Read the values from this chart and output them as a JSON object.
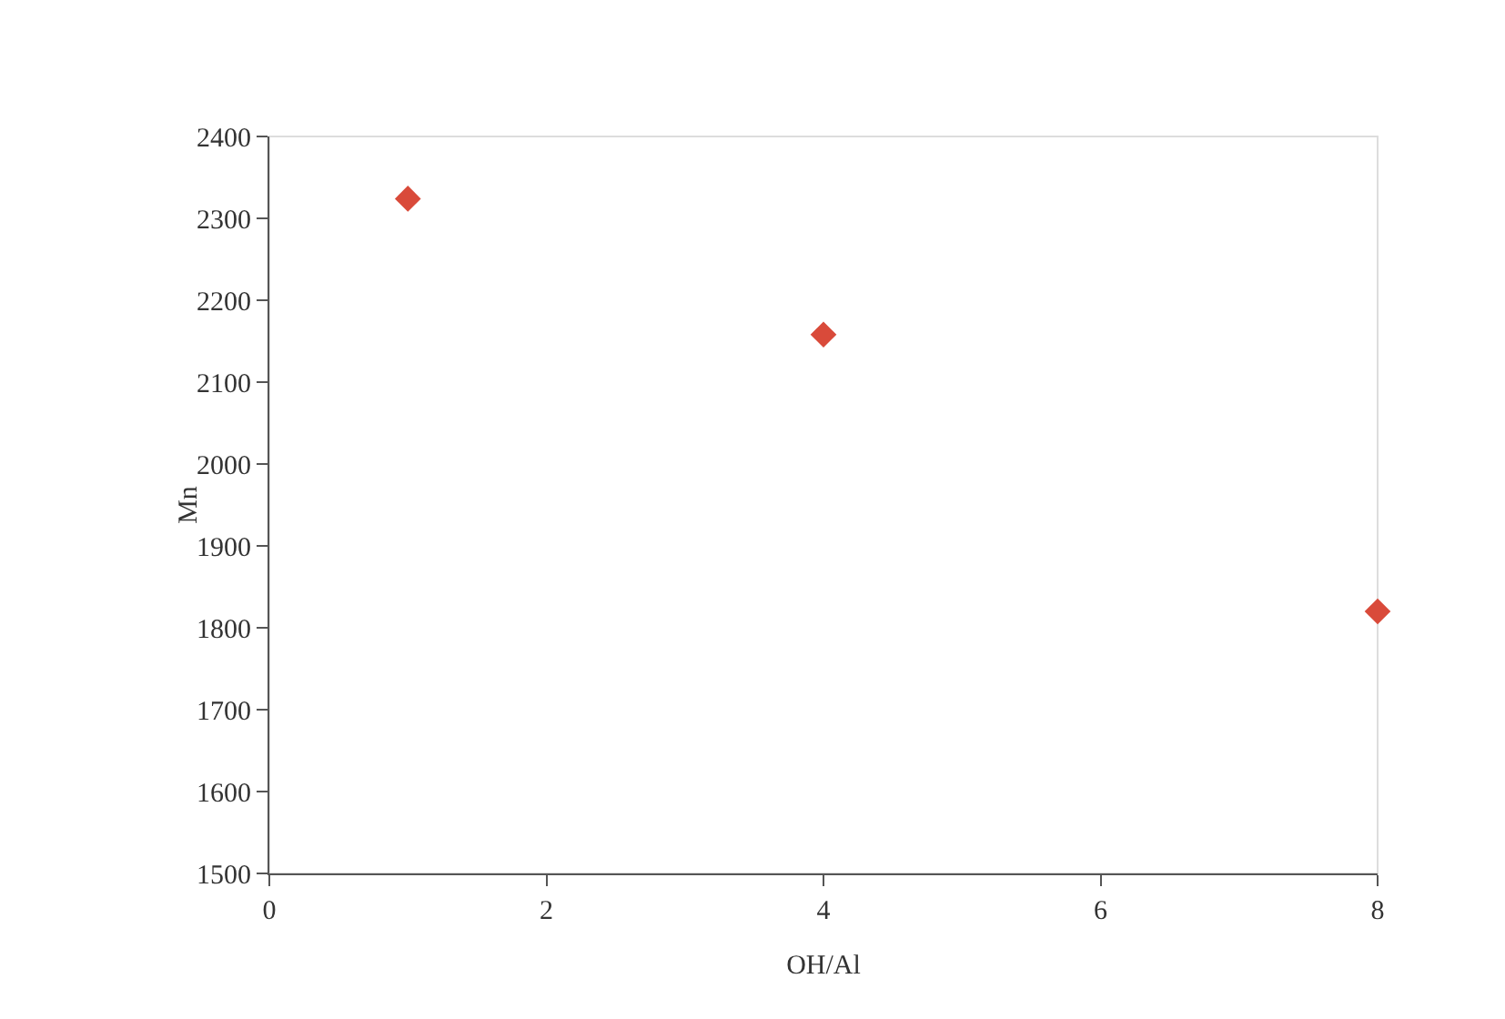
{
  "chart_data": {
    "type": "scatter",
    "xlabel": "OH/Al",
    "ylabel": "Mn",
    "x": [
      1,
      4,
      8
    ],
    "series": [
      {
        "color": "#d94a3a",
        "values": [
          2324,
          2158,
          1820
        ]
      }
    ],
    "xlim": [
      0,
      8
    ],
    "xticks": [
      0,
      2,
      4,
      6,
      8
    ],
    "ylim": [
      1500,
      2400
    ],
    "yticks": [
      1500,
      1600,
      1700,
      1800,
      1900,
      2000,
      2100,
      2200,
      2300,
      2400
    ],
    "grid": false,
    "marker": "diamond"
  }
}
